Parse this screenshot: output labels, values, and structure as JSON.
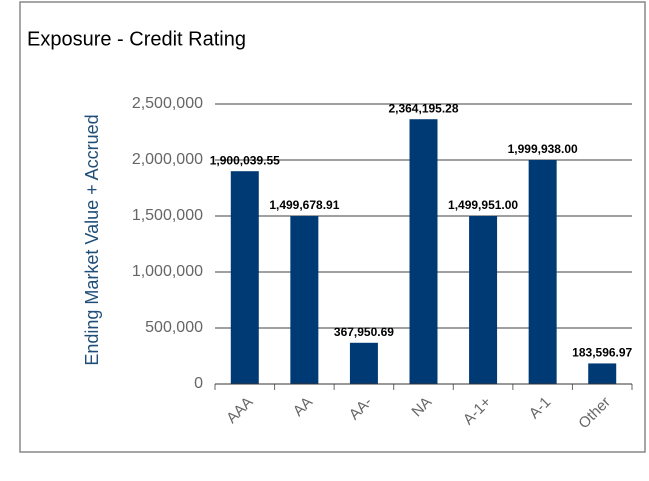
{
  "chart_data": {
    "type": "bar",
    "title": "Exposure - Credit Rating",
    "y_label": "Ending Market Value + Accrued",
    "categories": [
      "AAA",
      "AA",
      "AA-",
      "NA",
      "A-1+",
      "A-1",
      "Other"
    ],
    "values": [
      1900039.55,
      1499678.91,
      367950.69,
      2364195.28,
      1499951.0,
      1999938.0,
      183596.97
    ],
    "value_labels": [
      "1,900,039.55",
      "1,499,678.91",
      "367,950.69",
      "2,364,195.28",
      "1,499,951.00",
      "1,999,938.00",
      "183,596.97"
    ],
    "color": "#003a75",
    "ylim": [
      0,
      2500000
    ],
    "yticks": [
      0,
      {
        "value": 500000,
        "label": "500,000"
      },
      {
        "value": 1000000,
        "label": "1,000,000"
      },
      {
        "value": 1500000,
        "label": "1,500,000"
      },
      {
        "value": 2000000,
        "label": "2,000,000"
      },
      {
        "value": 2500000,
        "label": "2,500,000"
      }
    ],
    "grid": true
  }
}
